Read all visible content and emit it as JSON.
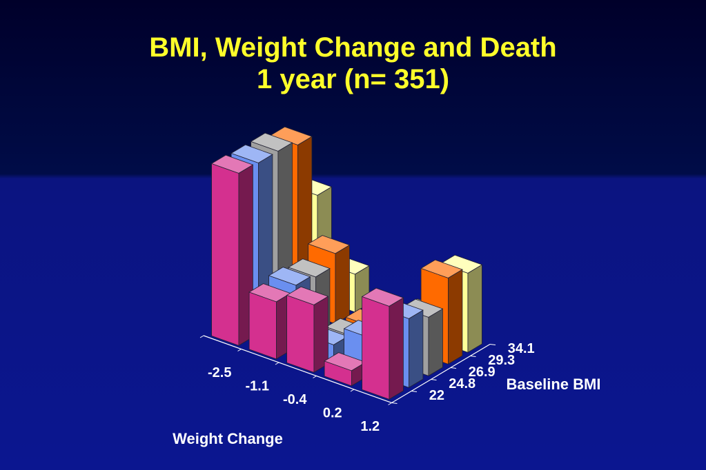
{
  "slide": {
    "title_line1": "BMI, Weight Change and Death",
    "title_line2": "1 year (n= 351)"
  },
  "chart_data": {
    "type": "bar3d",
    "title": "BMI, Weight Change and Death 1 year (n= 351)",
    "x_axis": {
      "label": "Weight Change",
      "categories": [
        "-2.5",
        "-1.1",
        "-0.4",
        "0.2",
        "1.2"
      ]
    },
    "depth_axis": {
      "label": "Baseline BMI",
      "categories": [
        "22",
        "24.8",
        "26.9",
        "29.3",
        "34.1"
      ]
    },
    "z_unit": "relative bar height (no z axis printed)",
    "series": [
      {
        "name": "22",
        "color": "#d4308f",
        "values": [
          250,
          83,
          98,
          22,
          135
        ]
      },
      {
        "name": "24.8",
        "color": "#6a8ff0",
        "values": [
          248,
          90,
          23,
          52,
          100
        ]
      },
      {
        "name": "26.9",
        "color": "#a0a0a0",
        "values": [
          248,
          85,
          18,
          15,
          85
        ]
      },
      {
        "name": "29.3",
        "color": "#ff6a00",
        "values": [
          240,
          102,
          15,
          45,
          125
        ]
      },
      {
        "name": "34.1",
        "color": "#ffff99",
        "values": [
          150,
          55,
          15,
          32,
          115
        ]
      }
    ]
  }
}
